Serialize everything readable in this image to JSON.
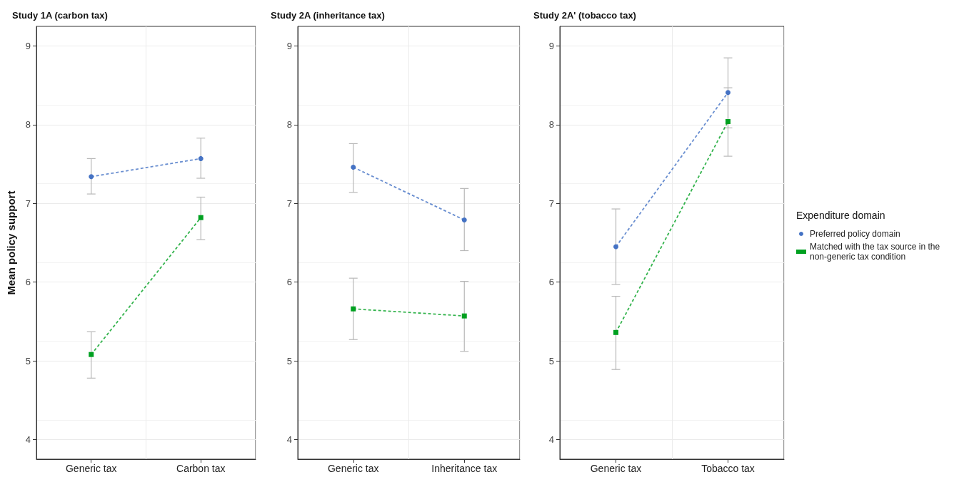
{
  "chart_data": [
    {
      "type": "line",
      "title": "Study 1A (carbon tax)",
      "ylabel": "Mean policy support",
      "categories": [
        "Generic tax",
        "Carbon tax"
      ],
      "ylim": [
        3.75,
        9.25
      ],
      "yticks": [
        4,
        5,
        6,
        7,
        8,
        9
      ],
      "grid": true,
      "line_style": "dashed",
      "legend": false,
      "series": [
        {
          "color": "#4472c4",
          "marker": "circle",
          "values": [
            7.34,
            7.57
          ],
          "errors": [
            [
              7.12,
              7.57
            ],
            [
              7.32,
              7.83
            ]
          ]
        },
        {
          "color": "#00a020",
          "marker": "square",
          "values": [
            5.08,
            6.82
          ],
          "errors": [
            [
              4.78,
              5.37
            ],
            [
              6.54,
              7.08
            ]
          ]
        }
      ]
    },
    {
      "type": "line",
      "title": "Study 2A (inheritance tax)",
      "categories": [
        "Generic tax",
        "Inheritance tax"
      ],
      "ylim": [
        3.75,
        9.25
      ],
      "yticks": [
        4,
        5,
        6,
        7,
        8,
        9
      ],
      "grid": true,
      "line_style": "dashed",
      "legend": false,
      "series": [
        {
          "color": "#4472c4",
          "marker": "circle",
          "values": [
            7.46,
            6.79
          ],
          "errors": [
            [
              7.14,
              7.76
            ],
            [
              6.4,
              7.19
            ]
          ]
        },
        {
          "color": "#00a020",
          "marker": "square",
          "values": [
            5.66,
            5.57
          ],
          "errors": [
            [
              5.27,
              6.05
            ],
            [
              5.12,
              6.01
            ]
          ]
        }
      ]
    },
    {
      "type": "line",
      "title": "Study 2A' (tobacco tax)",
      "categories": [
        "Generic tax",
        "Tobacco tax"
      ],
      "ylim": [
        3.75,
        9.25
      ],
      "yticks": [
        4,
        5,
        6,
        7,
        8,
        9
      ],
      "grid": true,
      "line_style": "dashed",
      "legend": "right",
      "legend_title": "Expenditure domain",
      "series": [
        {
          "name": "Preferred policy domain",
          "color": "#4472c4",
          "marker": "circle",
          "values": [
            6.45,
            8.41
          ],
          "errors": [
            [
              5.97,
              6.93
            ],
            [
              7.96,
              8.85
            ]
          ]
        },
        {
          "name": "Matched with the tax source in the non-generic tax condition",
          "color": "#00a020",
          "marker": "square",
          "values": [
            5.36,
            8.04
          ],
          "errors": [
            [
              4.89,
              5.82
            ],
            [
              7.6,
              8.47
            ]
          ]
        }
      ]
    }
  ]
}
